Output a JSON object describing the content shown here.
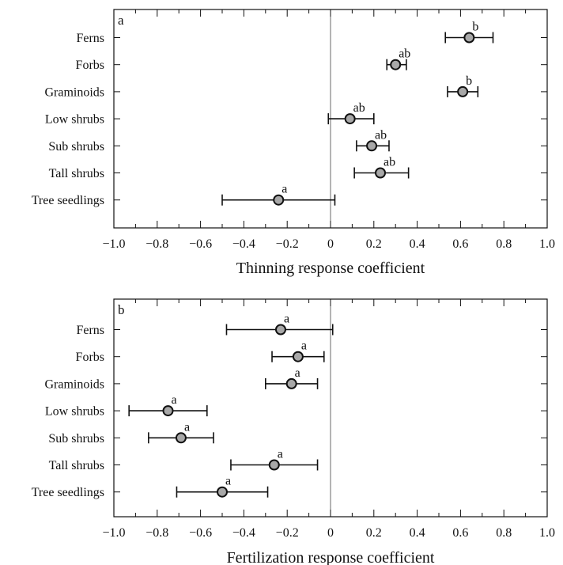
{
  "chart_data": [
    {
      "type": "scatter",
      "panel_label": "a",
      "xlabel": "Thinning response coefficient",
      "xlim": [
        -1.0,
        1.0
      ],
      "xticks": [
        "-1.0",
        "-0.8",
        "-0.6",
        "-0.4",
        "-0.2",
        "0",
        "0.2",
        "0.4",
        "0.6",
        "0.8",
        "1.0"
      ],
      "categories": [
        "Ferns",
        "Forbs",
        "Graminoids",
        "Low shrubs",
        "Sub shrubs",
        "Tall shrubs",
        "Tree seedlings"
      ],
      "values": [
        0.64,
        0.3,
        0.61,
        0.09,
        0.19,
        0.23,
        -0.24
      ],
      "error_low": [
        0.53,
        0.26,
        0.54,
        -0.01,
        0.12,
        0.11,
        -0.5
      ],
      "error_high": [
        0.75,
        0.35,
        0.68,
        0.2,
        0.27,
        0.36,
        0.02
      ],
      "letters": [
        "b",
        "ab",
        "b",
        "ab",
        "ab",
        "ab",
        "a"
      ]
    },
    {
      "type": "scatter",
      "panel_label": "b",
      "xlabel": "Fertilization response coefficient",
      "xlim": [
        -1.0,
        1.0
      ],
      "xticks": [
        "-1.0",
        "-0.8",
        "-0.6",
        "-0.4",
        "-0.2",
        "0",
        "0.2",
        "0.4",
        "0.6",
        "0.8",
        "1.0"
      ],
      "categories": [
        "Ferns",
        "Forbs",
        "Graminoids",
        "Low shrubs",
        "Sub shrubs",
        "Tall shrubs",
        "Tree seedlings"
      ],
      "values": [
        -0.23,
        -0.15,
        -0.18,
        -0.75,
        -0.69,
        -0.26,
        -0.5
      ],
      "error_low": [
        -0.48,
        -0.27,
        -0.3,
        -0.93,
        -0.84,
        -0.46,
        -0.71
      ],
      "error_high": [
        0.01,
        -0.03,
        -0.06,
        -0.57,
        -0.54,
        -0.06,
        -0.29
      ],
      "letters": [
        "a",
        "a",
        "a",
        "a",
        "a",
        "a",
        "a"
      ]
    }
  ]
}
